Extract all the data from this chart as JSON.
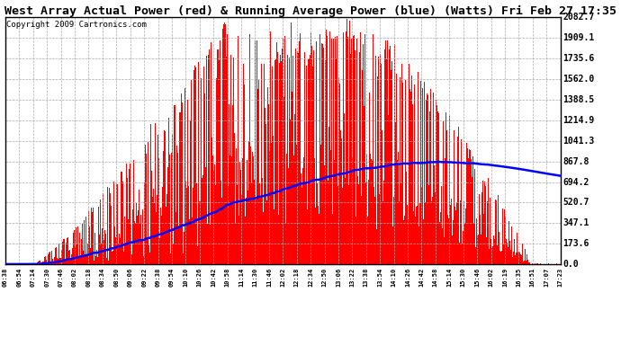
{
  "title": "West Array Actual Power (red) & Running Average Power (blue) (Watts) Fri Feb 27 17:35",
  "copyright": "Copyright 2009 Cartronics.com",
  "y_ticks": [
    0.0,
    173.6,
    347.1,
    520.7,
    694.2,
    867.8,
    1041.3,
    1214.9,
    1388.5,
    1562.0,
    1735.6,
    1909.1,
    2082.7
  ],
  "x_labels": [
    "06:38",
    "06:54",
    "07:14",
    "07:30",
    "07:46",
    "08:02",
    "08:18",
    "08:34",
    "08:50",
    "09:06",
    "09:22",
    "09:38",
    "09:54",
    "10:10",
    "10:26",
    "10:42",
    "10:58",
    "11:14",
    "11:30",
    "11:46",
    "12:02",
    "12:18",
    "12:34",
    "12:50",
    "13:06",
    "13:22",
    "13:38",
    "13:54",
    "14:10",
    "14:26",
    "14:42",
    "14:58",
    "15:14",
    "15:30",
    "15:46",
    "16:02",
    "16:19",
    "16:35",
    "16:51",
    "17:07",
    "17:23"
  ],
  "ymax": 2082.7,
  "bar_color": "#ff0000",
  "avg_color": "#0000ff",
  "bg_color": "#ffffff",
  "grid_color": "#aaaaaa",
  "title_fontsize": 9.5,
  "copyright_fontsize": 6.5,
  "n_points": 640
}
